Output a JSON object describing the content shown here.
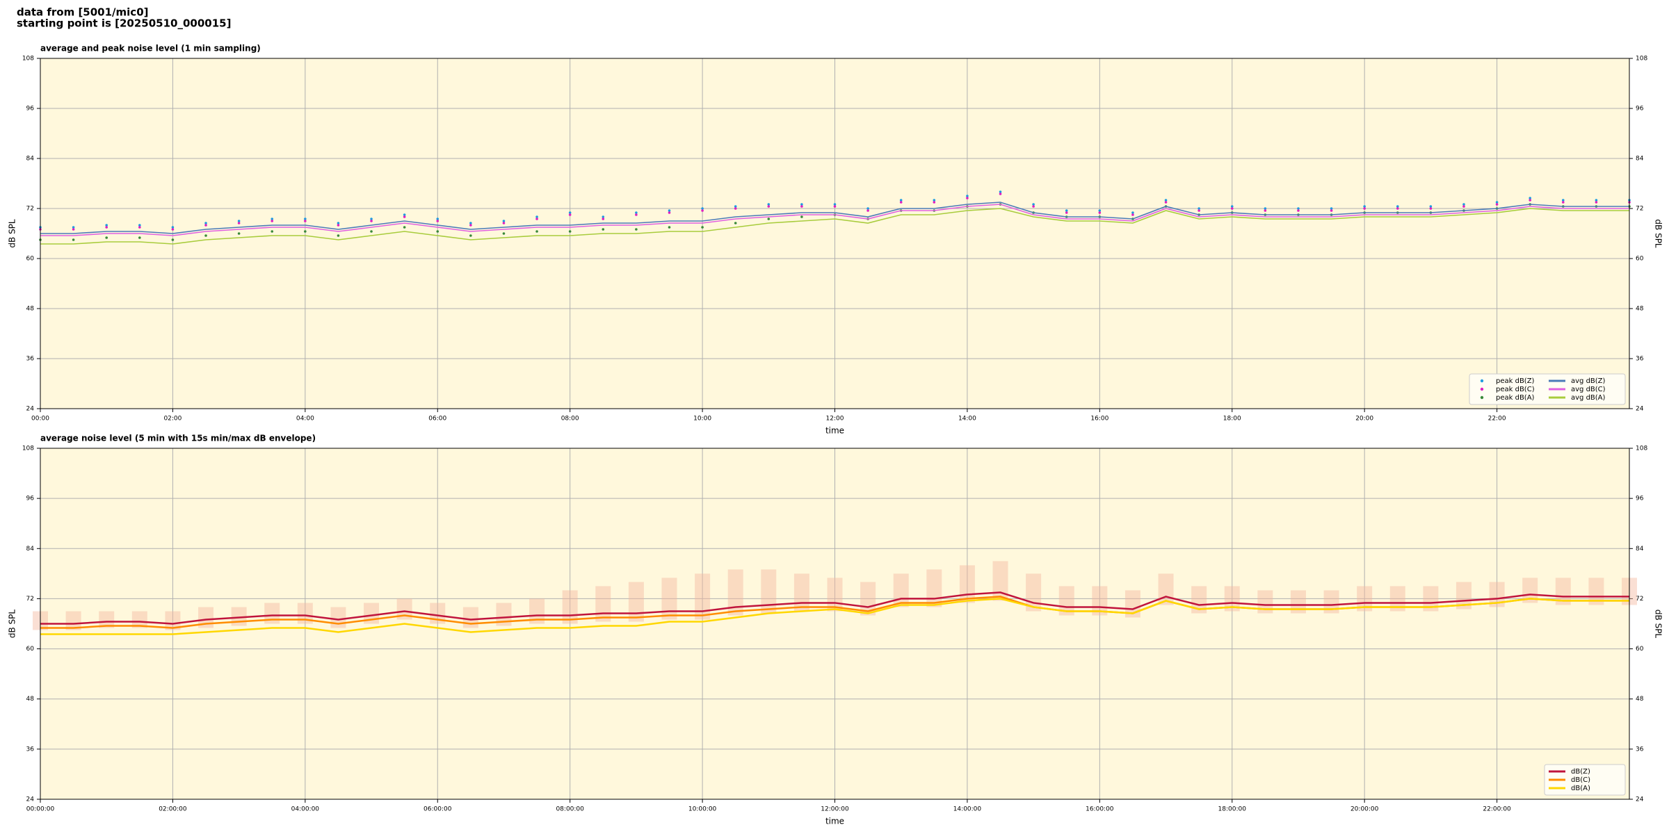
{
  "header": {
    "lines": [
      "data from [5001/mic0]",
      "starting point is [20250510_000015]"
    ]
  },
  "chart_data": [
    {
      "type": "line",
      "title": "average and peak noise level (1 min sampling)",
      "xlabel": "time",
      "ylabel": "dB SPL",
      "x": [
        0,
        0.5,
        1,
        1.5,
        2,
        2.5,
        3,
        3.5,
        4,
        4.5,
        5,
        5.5,
        6,
        6.5,
        7,
        7.5,
        8,
        8.5,
        9,
        9.5,
        10,
        10.5,
        11,
        11.5,
        12,
        12.5,
        13,
        13.5,
        14,
        14.5,
        15,
        15.5,
        16,
        16.5,
        17,
        17.5,
        18,
        18.5,
        19,
        19.5,
        20,
        20.5,
        21,
        21.5,
        22,
        22.5,
        23,
        23.5,
        24
      ],
      "xlim": [
        0,
        24
      ],
      "xticks": [
        {
          "value": 0,
          "label": "00:00"
        },
        {
          "value": 2,
          "label": "02:00"
        },
        {
          "value": 4,
          "label": "04:00"
        },
        {
          "value": 6,
          "label": "06:00"
        },
        {
          "value": 8,
          "label": "08:00"
        },
        {
          "value": 10,
          "label": "10:00"
        },
        {
          "value": 12,
          "label": "12:00"
        },
        {
          "value": 14,
          "label": "14:00"
        },
        {
          "value": 16,
          "label": "16:00"
        },
        {
          "value": 18,
          "label": "18:00"
        },
        {
          "value": 20,
          "label": "20:00"
        },
        {
          "value": 22,
          "label": "22:00"
        }
      ],
      "ylim": [
        24,
        108
      ],
      "yticks": [
        24,
        36,
        48,
        60,
        72,
        84,
        96,
        108
      ],
      "grid": true,
      "background": "#fff8dc",
      "legend": "lower right",
      "legend_columns": 2,
      "series": [
        {
          "name": "peak dB(Z)",
          "style": "scatter",
          "color": "#1f9be0",
          "values": [
            67.5,
            67.5,
            68,
            68,
            67.5,
            68.5,
            69,
            69.5,
            69.5,
            68.5,
            69.5,
            70.5,
            69.5,
            68.5,
            69,
            70,
            71,
            70,
            71,
            71.5,
            72,
            72.5,
            73,
            73,
            73,
            72,
            74,
            74,
            75,
            76,
            73,
            71.5,
            71.5,
            71,
            74,
            72,
            72.5,
            72,
            72,
            72,
            72.5,
            72.5,
            72.5,
            73,
            73.5,
            74.5,
            74,
            74,
            74
          ]
        },
        {
          "name": "peak dB(C)",
          "style": "scatter",
          "color": "#e020c0",
          "values": [
            67,
            67,
            67.5,
            67.5,
            67,
            68,
            68.5,
            69,
            69,
            68,
            69,
            70,
            69,
            68,
            68.5,
            69.5,
            70.5,
            69.5,
            70.5,
            71,
            71.5,
            72,
            72.5,
            72.5,
            72.5,
            71.5,
            73.5,
            73.5,
            74.5,
            75.5,
            72.5,
            71,
            71,
            70.5,
            73.5,
            71.5,
            72,
            71.5,
            71.5,
            71.5,
            72,
            72,
            72,
            72.5,
            73,
            74,
            73.5,
            73.5,
            73.5
          ]
        },
        {
          "name": "peak dB(A)",
          "style": "scatter",
          "color": "#3a8a3a",
          "values": [
            64.5,
            64.5,
            65,
            65,
            64.5,
            65.5,
            66,
            66.5,
            66.5,
            65.5,
            66.5,
            67.5,
            66.5,
            65.5,
            66,
            66.5,
            66.5,
            67,
            67,
            67.5,
            67.5,
            68.5,
            69.5,
            70,
            70.5,
            69.5,
            71.5,
            71.5,
            72.5,
            73,
            71,
            70,
            70,
            69.5,
            72.5,
            70.5,
            71,
            70.5,
            70.5,
            70.5,
            71,
            71,
            71,
            71.5,
            72,
            73,
            72.5,
            72.5,
            72.5
          ]
        },
        {
          "name": "avg dB(Z)",
          "style": "line",
          "color": "#4a7ab8",
          "values": [
            66,
            66,
            66.5,
            66.5,
            66,
            67,
            67.5,
            68,
            68,
            67,
            68,
            69,
            68,
            67,
            67.5,
            68,
            68,
            68.5,
            68.5,
            69,
            69,
            70,
            70.5,
            71,
            71,
            70,
            72,
            72,
            73,
            73.5,
            71,
            70,
            70,
            69.5,
            72.5,
            70.5,
            71,
            70.5,
            70.5,
            70.5,
            71,
            71,
            71,
            71.5,
            72,
            73,
            72.5,
            72.5,
            72.5
          ]
        },
        {
          "name": "avg dB(C)",
          "style": "line",
          "color": "#e060e0",
          "values": [
            65.5,
            65.5,
            66,
            66,
            65.5,
            66.5,
            67,
            67.5,
            67.5,
            66.5,
            67.5,
            68.5,
            67.5,
            66.5,
            67,
            67.5,
            67.5,
            68,
            68,
            68.5,
            68.5,
            69.5,
            70,
            70.5,
            70.5,
            69.5,
            71.5,
            71.5,
            72.5,
            73,
            70.5,
            69.5,
            69.5,
            69,
            72,
            70,
            70.5,
            70,
            70,
            70,
            70.5,
            70.5,
            70.5,
            71,
            71.5,
            72.5,
            72,
            72,
            72
          ]
        },
        {
          "name": "avg dB(A)",
          "style": "line",
          "color": "#a8cc3c",
          "values": [
            63.5,
            63.5,
            64,
            64,
            63.5,
            64.5,
            65,
            65.5,
            65.5,
            64.5,
            65.5,
            66.5,
            65.5,
            64.5,
            65,
            65.5,
            65.5,
            66,
            66,
            66.5,
            66.5,
            67.5,
            68.5,
            69,
            69.5,
            68.5,
            70.5,
            70.5,
            71.5,
            72,
            70,
            69,
            69,
            68.5,
            71.5,
            69.5,
            70,
            69.5,
            69.5,
            69.5,
            70,
            70,
            70,
            70.5,
            71,
            72,
            71.5,
            71.5,
            71.5
          ]
        }
      ]
    },
    {
      "type": "line",
      "title": "average noise level (5 min with 15s min/max dB envelope)",
      "xlabel": "time",
      "ylabel": "dB SPL",
      "x": [
        0,
        0.5,
        1,
        1.5,
        2,
        2.5,
        3,
        3.5,
        4,
        4.5,
        5,
        5.5,
        6,
        6.5,
        7,
        7.5,
        8,
        8.5,
        9,
        9.5,
        10,
        10.5,
        11,
        11.5,
        12,
        12.5,
        13,
        13.5,
        14,
        14.5,
        15,
        15.5,
        16,
        16.5,
        17,
        17.5,
        18,
        18.5,
        19,
        19.5,
        20,
        20.5,
        21,
        21.5,
        22,
        22.5,
        23,
        23.5,
        24
      ],
      "xlim": [
        0,
        24
      ],
      "xticks": [
        {
          "value": 0,
          "label": "00:00:00"
        },
        {
          "value": 2,
          "label": "02:00:00"
        },
        {
          "value": 4,
          "label": "04:00:00"
        },
        {
          "value": 6,
          "label": "06:00:00"
        },
        {
          "value": 8,
          "label": "08:00:00"
        },
        {
          "value": 10,
          "label": "10:00:00"
        },
        {
          "value": 12,
          "label": "12:00:00"
        },
        {
          "value": 14,
          "label": "14:00:00"
        },
        {
          "value": 16,
          "label": "16:00:00"
        },
        {
          "value": 18,
          "label": "18:00:00"
        },
        {
          "value": 20,
          "label": "20:00:00"
        },
        {
          "value": 22,
          "label": "22:00:00"
        }
      ],
      "ylim": [
        24,
        108
      ],
      "yticks": [
        24,
        36,
        48,
        60,
        72,
        84,
        96,
        108
      ],
      "grid": true,
      "background": "#fff8dc",
      "legend": "lower right",
      "legend_columns": 1,
      "envelope": {
        "color": "#f4b8a0",
        "low": [
          64.5,
          64.5,
          65,
          65,
          64.5,
          65,
          65.5,
          66,
          66,
          65,
          66,
          67,
          66,
          65,
          65.5,
          66,
          66,
          66.5,
          66.5,
          67,
          67,
          68,
          68.5,
          69,
          69,
          68,
          70,
          70,
          71,
          71.5,
          69,
          68,
          68,
          67.5,
          70.5,
          68.5,
          69,
          68.5,
          68.5,
          68.5,
          69,
          69,
          69,
          69.5,
          70,
          71,
          70.5,
          70.5,
          70.5
        ],
        "high": [
          69,
          69,
          69,
          69,
          69,
          70,
          70,
          71,
          71,
          70,
          71,
          72,
          71,
          70,
          71,
          72,
          74,
          75,
          76,
          77,
          78,
          79,
          79,
          78,
          77,
          76,
          78,
          79,
          80,
          81,
          78,
          75,
          75,
          74,
          78,
          75,
          75,
          74,
          74,
          74,
          75,
          75,
          75,
          76,
          76,
          77,
          77,
          77,
          77
        ]
      },
      "series": [
        {
          "name": "dB(Z)",
          "style": "line",
          "color": "#c0143c",
          "values": [
            66,
            66,
            66.5,
            66.5,
            66,
            67,
            67.5,
            68,
            68,
            67,
            68,
            69,
            68,
            67,
            67.5,
            68,
            68,
            68.5,
            68.5,
            69,
            69,
            70,
            70.5,
            71,
            71,
            70,
            72,
            72,
            73,
            73.5,
            71,
            70,
            70,
            69.5,
            72.5,
            70.5,
            71,
            70.5,
            70.5,
            70.5,
            71,
            71,
            71,
            71.5,
            72,
            73,
            72.5,
            72.5,
            72.5
          ]
        },
        {
          "name": "dB(C)",
          "style": "line",
          "color": "#ff8c00",
          "values": [
            65,
            65,
            65.5,
            65.5,
            65,
            66,
            66.5,
            67,
            67,
            66,
            67,
            68,
            67,
            66,
            66.5,
            67,
            67,
            67.5,
            67.5,
            68,
            68,
            69,
            69.5,
            70,
            70,
            69,
            71,
            71,
            72,
            72.5,
            70,
            69,
            69,
            68.5,
            71.5,
            69.5,
            70,
            69.5,
            69.5,
            69.5,
            70,
            70,
            70,
            70.5,
            71,
            72,
            71.5,
            71.5,
            71.5
          ]
        },
        {
          "name": "dB(A)",
          "style": "line",
          "color": "#ffd700",
          "values": [
            63.5,
            63.5,
            63.5,
            63.5,
            63.5,
            64,
            64.5,
            65,
            65,
            64,
            65,
            66,
            65,
            64,
            64.5,
            65,
            65,
            65.5,
            65.5,
            66.5,
            66.5,
            67.5,
            68.5,
            69,
            69.5,
            68.5,
            70.5,
            70.5,
            71.5,
            72,
            70,
            69,
            69,
            68.5,
            71.5,
            69.5,
            70,
            69.5,
            69.5,
            69.5,
            70,
            70,
            70,
            70.5,
            71,
            72,
            71.5,
            71.5,
            71.5
          ]
        }
      ]
    }
  ]
}
